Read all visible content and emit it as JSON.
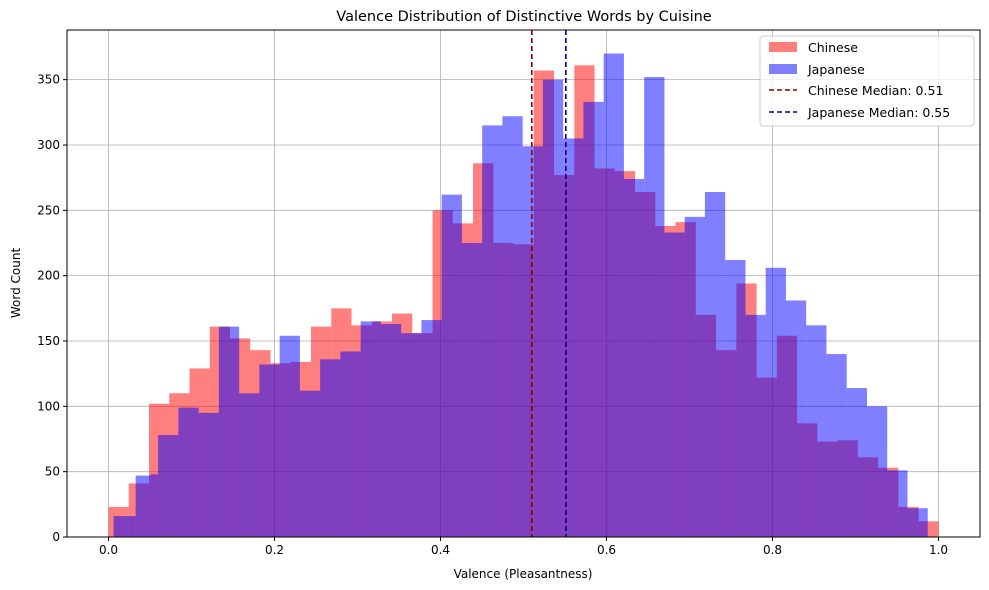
{
  "chart_data": {
    "type": "histogram",
    "title": "Valence Distribution of Distinctive Words by Cuisine",
    "xlabel": "Valence (Pleasantness)",
    "ylabel": "Word Count",
    "xlim": [
      -0.05,
      1.05
    ],
    "ylim": [
      0,
      388
    ],
    "xticks": [
      0.0,
      0.2,
      0.4,
      0.6,
      0.8,
      1.0
    ],
    "xtick_labels": [
      "0.0",
      "0.2",
      "0.4",
      "0.6",
      "0.8",
      "1.0"
    ],
    "yticks": [
      0,
      50,
      100,
      150,
      200,
      250,
      300,
      350
    ],
    "ytick_labels": [
      "0",
      "50",
      "100",
      "150",
      "200",
      "250",
      "300",
      "350"
    ],
    "grid": true,
    "legend_position": "top-right",
    "series": [
      {
        "name": "Chinese",
        "color": "#ff0000",
        "alpha": 0.5,
        "bins": [
          [
            0.0,
            0.0244,
            23
          ],
          [
            0.0244,
            0.0488,
            41
          ],
          [
            0.0488,
            0.0732,
            102
          ],
          [
            0.0732,
            0.0976,
            110
          ],
          [
            0.0976,
            0.122,
            129
          ],
          [
            0.122,
            0.1464,
            161
          ],
          [
            0.1464,
            0.1708,
            152
          ],
          [
            0.1708,
            0.1952,
            143
          ],
          [
            0.1952,
            0.2196,
            133
          ],
          [
            0.2196,
            0.244,
            134
          ],
          [
            0.244,
            0.2684,
            161
          ],
          [
            0.2684,
            0.2928,
            175
          ],
          [
            0.2928,
            0.3172,
            162
          ],
          [
            0.3172,
            0.3416,
            165
          ],
          [
            0.3416,
            0.366,
            171
          ],
          [
            0.366,
            0.3904,
            156
          ],
          [
            0.3904,
            0.4148,
            250
          ],
          [
            0.4148,
            0.4392,
            240
          ],
          [
            0.4392,
            0.4636,
            286
          ],
          [
            0.4636,
            0.488,
            225
          ],
          [
            0.488,
            0.5124,
            224
          ],
          [
            0.5124,
            0.5368,
            357
          ],
          [
            0.5368,
            0.5612,
            277
          ],
          [
            0.5612,
            0.5856,
            361
          ],
          [
            0.5856,
            0.61,
            282
          ],
          [
            0.61,
            0.6344,
            280
          ],
          [
            0.6344,
            0.6588,
            264
          ],
          [
            0.6588,
            0.6832,
            238
          ],
          [
            0.6832,
            0.7076,
            241
          ],
          [
            0.7076,
            0.732,
            170
          ],
          [
            0.732,
            0.7564,
            143
          ],
          [
            0.7564,
            0.7808,
            194
          ],
          [
            0.7808,
            0.8052,
            122
          ],
          [
            0.8052,
            0.8296,
            154
          ],
          [
            0.8296,
            0.854,
            87
          ],
          [
            0.854,
            0.8784,
            73
          ],
          [
            0.8784,
            0.9028,
            74
          ],
          [
            0.9028,
            0.9272,
            61
          ],
          [
            0.9272,
            0.9516,
            53
          ],
          [
            0.9516,
            0.976,
            23
          ],
          [
            0.976,
            1.0,
            12
          ]
        ]
      },
      {
        "name": "Japanese",
        "color": "#0000ff",
        "alpha": 0.5,
        "bins": [
          [
            0.0061,
            0.0327,
            16
          ],
          [
            0.0327,
            0.0508,
            47
          ],
          [
            0.0508,
            0.0598,
            48
          ],
          [
            0.0598,
            0.0842,
            78
          ],
          [
            0.0842,
            0.1086,
            99
          ],
          [
            0.1086,
            0.133,
            95
          ],
          [
            0.133,
            0.1574,
            161
          ],
          [
            0.1574,
            0.1818,
            110
          ],
          [
            0.1818,
            0.2062,
            132
          ],
          [
            0.2062,
            0.2306,
            154
          ],
          [
            0.2306,
            0.255,
            112
          ],
          [
            0.255,
            0.2794,
            136
          ],
          [
            0.2794,
            0.3038,
            142
          ],
          [
            0.3038,
            0.3282,
            165
          ],
          [
            0.3282,
            0.3526,
            163
          ],
          [
            0.3526,
            0.377,
            156
          ],
          [
            0.377,
            0.4014,
            166
          ],
          [
            0.4014,
            0.4258,
            262
          ],
          [
            0.4258,
            0.4502,
            225
          ],
          [
            0.4502,
            0.4746,
            315
          ],
          [
            0.4746,
            0.499,
            322
          ],
          [
            0.499,
            0.5234,
            299
          ],
          [
            0.5234,
            0.5478,
            350
          ],
          [
            0.5478,
            0.5722,
            305
          ],
          [
            0.5722,
            0.5966,
            333
          ],
          [
            0.5966,
            0.621,
            370
          ],
          [
            0.621,
            0.6454,
            274
          ],
          [
            0.6454,
            0.6698,
            352
          ],
          [
            0.6698,
            0.6942,
            233
          ],
          [
            0.6942,
            0.7186,
            245
          ],
          [
            0.7186,
            0.743,
            264
          ],
          [
            0.743,
            0.7674,
            212
          ],
          [
            0.7674,
            0.7918,
            170
          ],
          [
            0.7918,
            0.8162,
            206
          ],
          [
            0.8162,
            0.8406,
            181
          ],
          [
            0.8406,
            0.865,
            162
          ],
          [
            0.865,
            0.8894,
            140
          ],
          [
            0.8894,
            0.9138,
            114
          ],
          [
            0.9138,
            0.9382,
            100
          ],
          [
            0.9382,
            0.9626,
            51
          ],
          [
            0.9626,
            0.987,
            22
          ]
        ]
      }
    ],
    "median_lines": [
      {
        "label": "Chinese Median: 0.51",
        "value": 0.51,
        "color": "#8b0000",
        "dash": "dashed"
      },
      {
        "label": "Japanese Median: 0.55",
        "value": 0.551,
        "color": "#00008b",
        "dash": "dashed"
      }
    ]
  }
}
